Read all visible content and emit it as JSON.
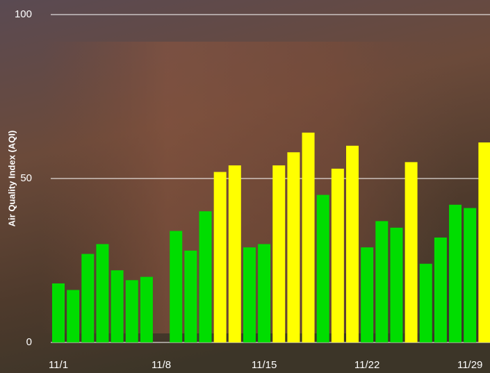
{
  "chart_data": {
    "type": "bar",
    "y_label": "Air Quality Index (AQI)",
    "categories": [
      "11/1",
      null,
      null,
      null,
      null,
      null,
      null,
      "11/8",
      null,
      null,
      null,
      null,
      null,
      null,
      "11/15",
      null,
      null,
      null,
      null,
      null,
      null,
      "11/22",
      null,
      null,
      null,
      null,
      null,
      null,
      "11/29",
      null
    ],
    "values": [
      18,
      16,
      27,
      30,
      22,
      19,
      20,
      null,
      34,
      28,
      40,
      52,
      54,
      29,
      30,
      54,
      58,
      64,
      45,
      53,
      60,
      29,
      37,
      35,
      55,
      24,
      32,
      42,
      41,
      61
    ],
    "colors": [
      "#00dd00",
      "#00dd00",
      "#00dd00",
      "#00dd00",
      "#00dd00",
      "#00dd00",
      "#00dd00",
      "#00dd00",
      "#00dd00",
      "#00dd00",
      "#00dd00",
      "#ffff00",
      "#ffff00",
      "#00dd00",
      "#00dd00",
      "#ffff00",
      "#ffff00",
      "#ffff00",
      "#00dd00",
      "#ffff00",
      "#ffff00",
      "#00dd00",
      "#00dd00",
      "#00dd00",
      "#ffff00",
      "#00dd00",
      "#00dd00",
      "#00dd00",
      "#00dd00",
      "#ffff00"
    ],
    "ylim": [
      0,
      100
    ],
    "yticks": [
      0,
      50,
      100
    ],
    "grid": true
  }
}
